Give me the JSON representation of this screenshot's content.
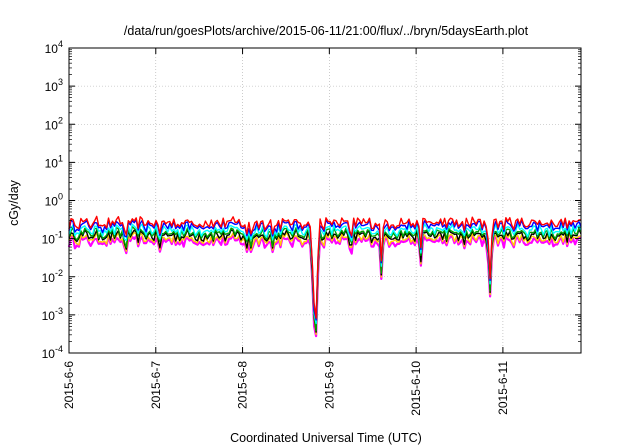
{
  "chart_data": {
    "type": "line",
    "title": "/data/run/goesPlots/archive/2015-06-11/21:00/flux/../bryn/5daysEarth.plot",
    "xlabel": "Coordinated Universal Time (UTC)",
    "ylabel": "cGy/day",
    "x_tick_labels": [
      "2015-6-6",
      "2015-6-7",
      "2015-6-8",
      "2015-6-9",
      "2015-6-10",
      "2015-6-11"
    ],
    "x_range_days": [
      0,
      5.9
    ],
    "y_scale": "log",
    "ylim": [
      0.0001,
      10000
    ],
    "y_tick_exponents": [
      4,
      3,
      2,
      1,
      0,
      -1,
      -2,
      -3,
      -4
    ],
    "grid": true,
    "series": [
      {
        "color": "#ff0000",
        "base": 0.26
      },
      {
        "color": "#0000ff",
        "base": 0.22
      },
      {
        "color": "#00ffff",
        "base": 0.17
      },
      {
        "color": "#00a000",
        "base": 0.14
      },
      {
        "color": "#000000",
        "base": 0.12
      },
      {
        "color": "#ffd000",
        "base": 0.1
      },
      {
        "color": "#ff00ff",
        "base": 0.085
      }
    ],
    "dips": [
      {
        "day": 0.65,
        "min": 0.04
      },
      {
        "day": 1.05,
        "min": 0.05
      },
      {
        "day": 2.05,
        "min": 0.045
      },
      {
        "day": 2.1,
        "min": 0.05
      },
      {
        "day": 2.35,
        "min": 0.045
      },
      {
        "day": 2.82,
        "min": 0.0002
      },
      {
        "day": 2.85,
        "min": 0.00015
      },
      {
        "day": 3.25,
        "min": 0.03
      },
      {
        "day": 3.6,
        "min": 0.012
      },
      {
        "day": 4.05,
        "min": 0.025
      },
      {
        "day": 4.55,
        "min": 0.06
      },
      {
        "day": 4.85,
        "min": 0.0022
      }
    ]
  }
}
